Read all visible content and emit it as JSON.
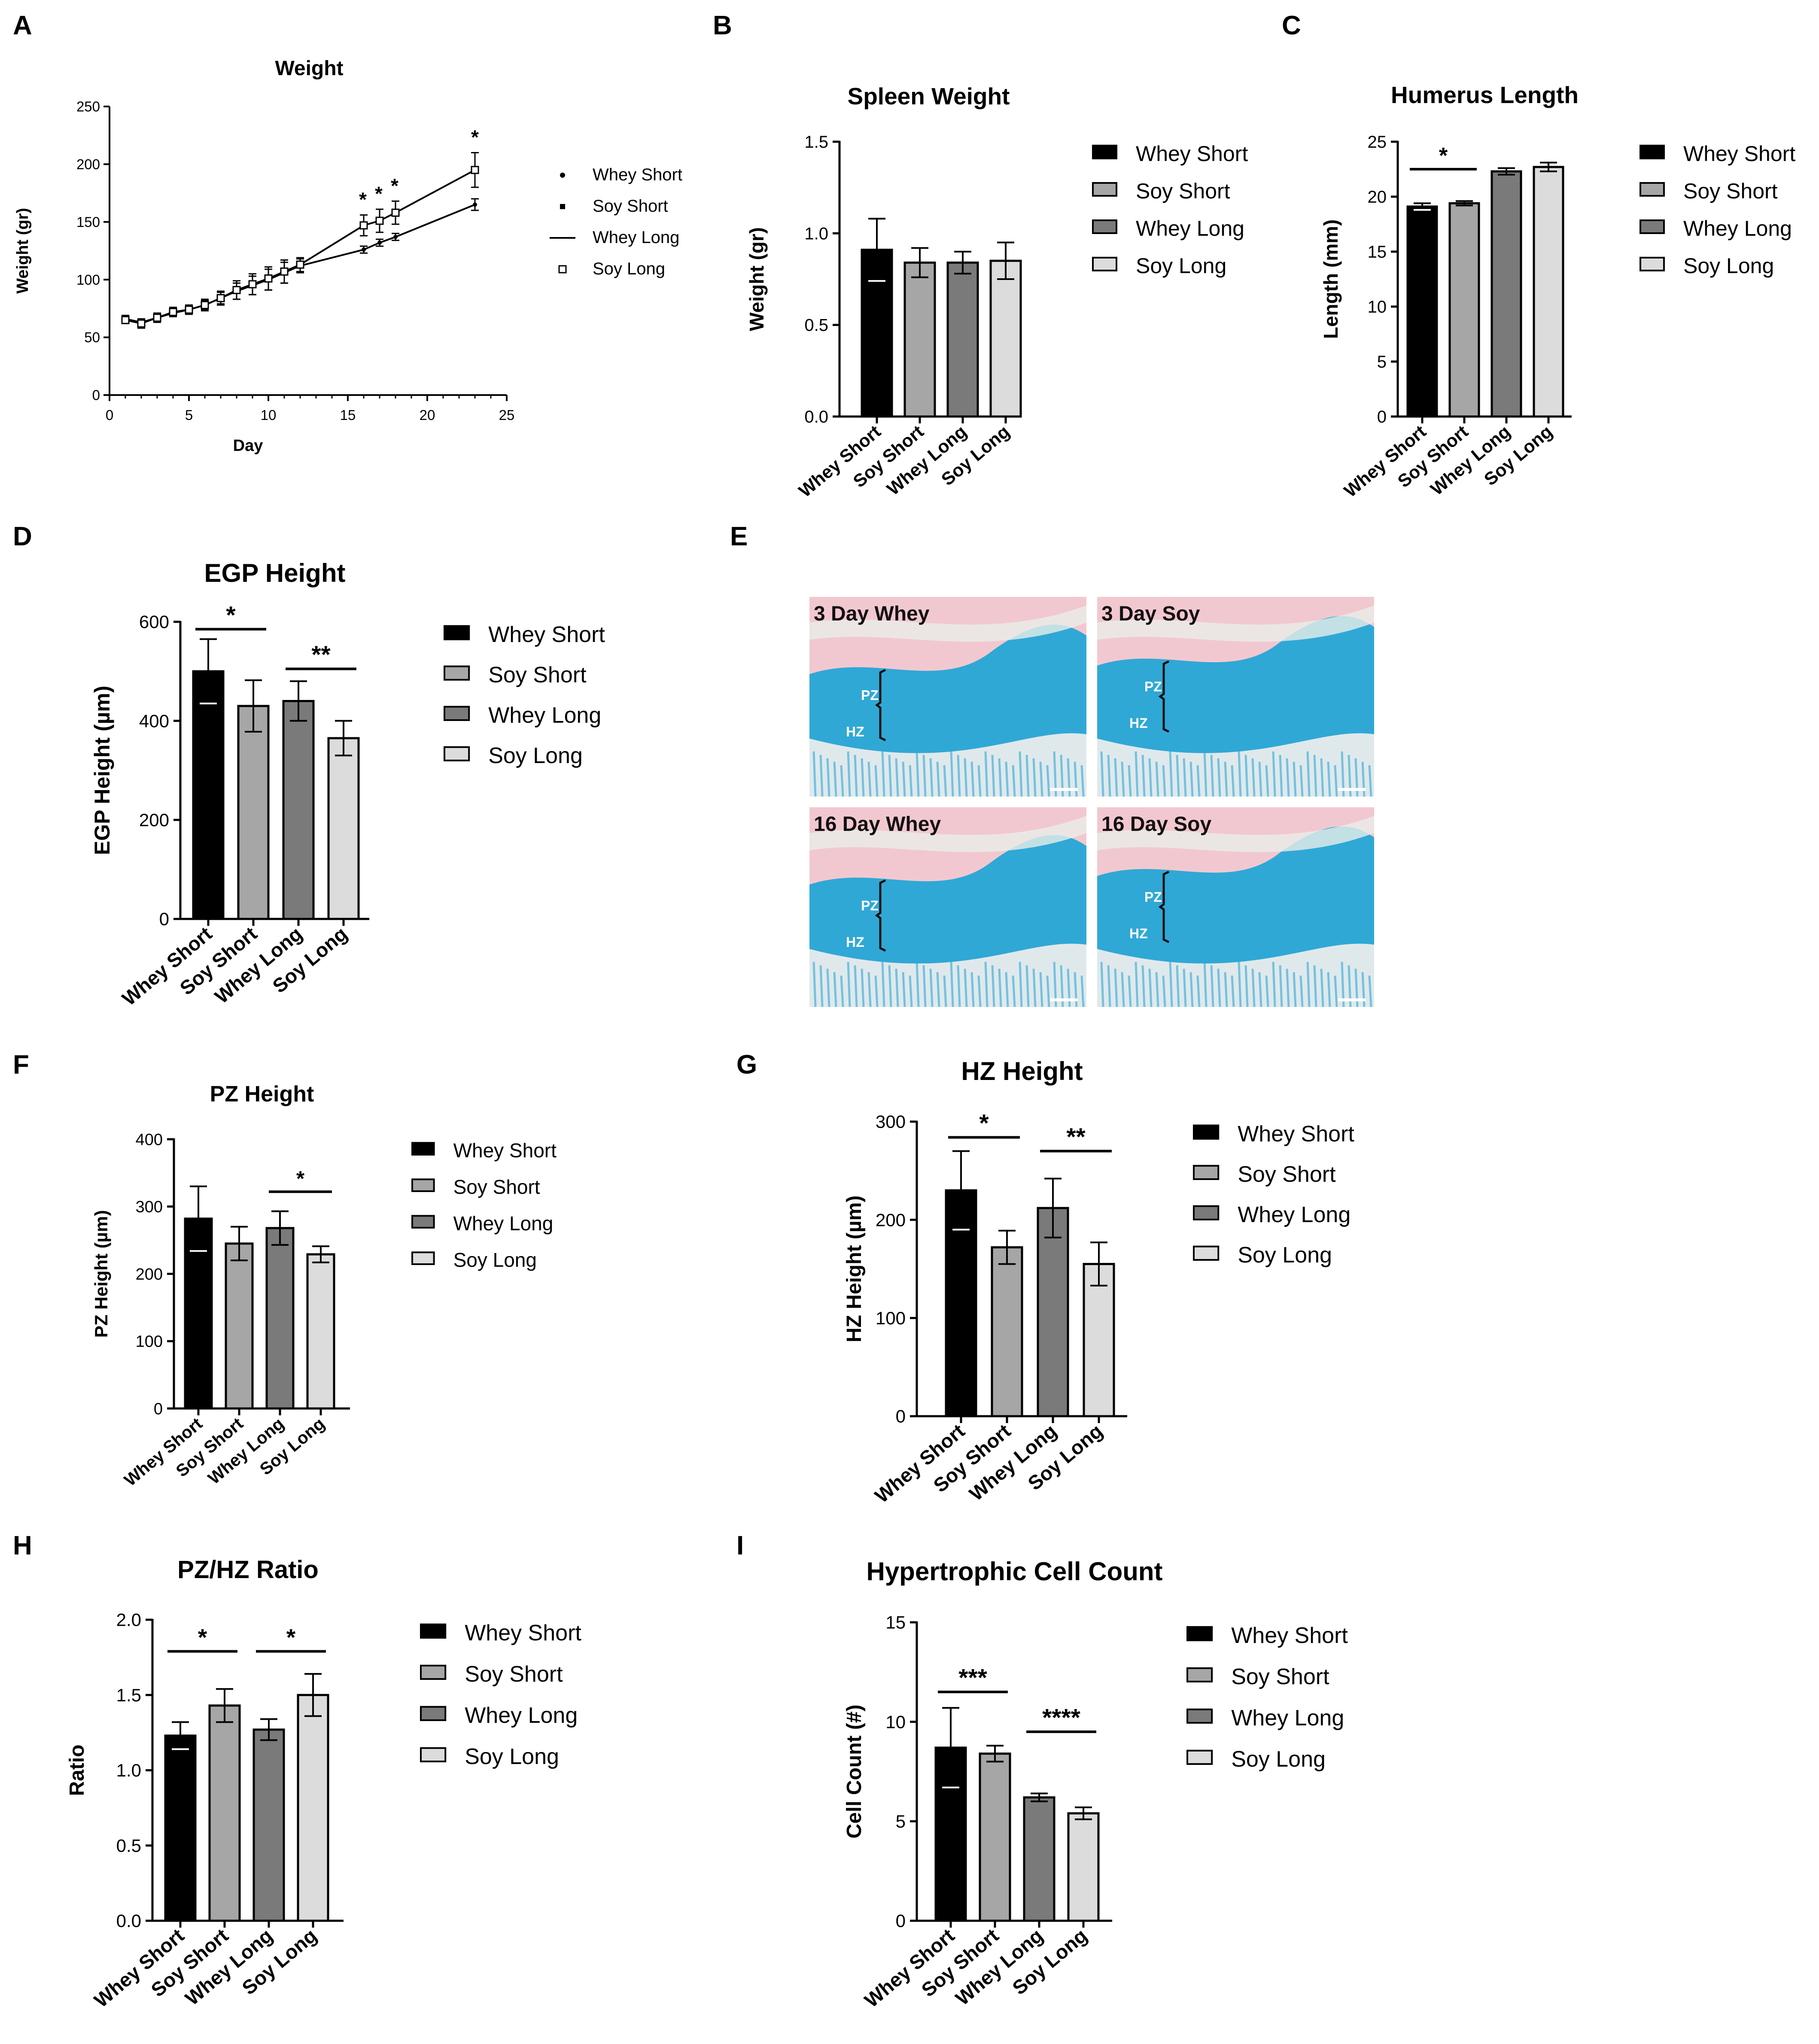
{
  "colors": {
    "whey_short": "#000000",
    "soy_short": "#a6a6a6",
    "whey_long": "#7a7a7a",
    "soy_long": "#dcdcdc",
    "axis": "#000000",
    "stain_pink": "#f2c8d0",
    "stain_blue": "#2fa8d6",
    "stain_light": "#dfe9ec"
  },
  "chart_data": [
    {
      "panel": "A",
      "type": "line",
      "title": "Weight",
      "xlabel": "Day",
      "ylabel": "Weight (gr)",
      "xlim": [
        0,
        25
      ],
      "ylim": [
        0,
        250
      ],
      "xticks": [
        "0",
        "5",
        "10",
        "15",
        "20",
        "25"
      ],
      "yticks": [
        "0",
        "50",
        "100",
        "150",
        "200",
        "250"
      ],
      "legend": [
        "Whey Short",
        "Soy Short",
        "Whey Long",
        "Soy Long"
      ],
      "series": [
        {
          "name": "Whey Long",
          "x": [
            1,
            2,
            3,
            4,
            5,
            6,
            7,
            8,
            9,
            10,
            11,
            12,
            16,
            17,
            18,
            23
          ],
          "y": [
            66,
            63,
            67,
            71,
            74,
            78,
            84,
            90,
            95,
            100,
            106,
            112,
            126,
            132,
            137,
            165
          ],
          "err": [
            3,
            3,
            3,
            3,
            3,
            4,
            5,
            7,
            8,
            9,
            9,
            6,
            3,
            3,
            3,
            5
          ]
        },
        {
          "name": "Soy Long",
          "x": [
            1,
            2,
            3,
            4,
            5,
            6,
            7,
            8,
            9,
            10,
            11,
            12,
            16,
            17,
            18,
            23
          ],
          "y": [
            65,
            62,
            67,
            72,
            74,
            78,
            84,
            91,
            96,
            101,
            107,
            113,
            147,
            151,
            158,
            195
          ],
          "err": [
            3,
            4,
            4,
            4,
            4,
            5,
            6,
            8,
            9,
            10,
            10,
            6,
            9,
            10,
            10,
            15
          ]
        }
      ],
      "significance": [
        {
          "x": 16,
          "label": "*"
        },
        {
          "x": 17,
          "label": "*"
        },
        {
          "x": 18,
          "label": "*"
        },
        {
          "x": 23,
          "label": "*"
        }
      ]
    },
    {
      "panel": "B",
      "type": "bar",
      "title": "Spleen Weight",
      "ylabel": "Weight (gr)",
      "categories": [
        "Whey Short",
        "Soy Short",
        "Whey Long",
        "Soy Long"
      ],
      "values": [
        0.91,
        0.84,
        0.84,
        0.85
      ],
      "errors": [
        0.17,
        0.08,
        0.06,
        0.1
      ],
      "ylim": [
        0,
        1.5
      ],
      "yticks": [
        "0.0",
        "0.5",
        "1.0",
        "1.5"
      ],
      "significance": []
    },
    {
      "panel": "C",
      "type": "bar",
      "title": "Humerus Length",
      "ylabel": "Length (mm)",
      "categories": [
        "Whey Short",
        "Soy Short",
        "Whey Long",
        "Soy Long"
      ],
      "values": [
        19.1,
        19.4,
        22.3,
        22.7
      ],
      "errors": [
        0.3,
        0.2,
        0.3,
        0.4
      ],
      "ylim": [
        0,
        25
      ],
      "yticks": [
        "0",
        "5",
        "10",
        "15",
        "20",
        "25"
      ],
      "significance": [
        {
          "from": 0,
          "to": 1,
          "level": 22.5,
          "label": "*"
        }
      ]
    },
    {
      "panel": "D",
      "type": "bar",
      "title": "EGP Height",
      "ylabel": "EGP Height (µm)",
      "categories": [
        "Whey Short",
        "Soy Short",
        "Whey Long",
        "Soy Long"
      ],
      "values": [
        500,
        430,
        440,
        365
      ],
      "errors": [
        65,
        52,
        40,
        35
      ],
      "ylim": [
        0,
        600
      ],
      "yticks": [
        "0",
        "200",
        "400",
        "600"
      ],
      "significance": [
        {
          "from": 0,
          "to": 1,
          "level": 585,
          "label": "*"
        },
        {
          "from": 2,
          "to": 3,
          "level": 505,
          "label": "**"
        }
      ]
    },
    {
      "panel": "F",
      "type": "bar",
      "title": "PZ Height",
      "ylabel": "PZ Height (µm)",
      "categories": [
        "Whey Short",
        "Soy Short",
        "Whey Long",
        "Soy Long"
      ],
      "values": [
        282,
        245,
        268,
        229
      ],
      "errors": [
        48,
        25,
        25,
        12
      ],
      "ylim": [
        0,
        400
      ],
      "yticks": [
        "0",
        "100",
        "200",
        "300",
        "400"
      ],
      "significance": [
        {
          "from": 2,
          "to": 3,
          "level": 322,
          "label": "*"
        }
      ]
    },
    {
      "panel": "G",
      "type": "bar",
      "title": "HZ Height",
      "ylabel": "HZ Height (µm)",
      "categories": [
        "Whey Short",
        "Soy Short",
        "Whey Long",
        "Soy Long"
      ],
      "values": [
        230,
        172,
        212,
        155
      ],
      "errors": [
        40,
        17,
        30,
        22
      ],
      "ylim": [
        0,
        300
      ],
      "yticks": [
        "0",
        "100",
        "200",
        "300"
      ],
      "significance": [
        {
          "from": 0,
          "to": 1,
          "level": 284,
          "label": "*"
        },
        {
          "from": 2,
          "to": 3,
          "level": 270,
          "label": "**"
        }
      ]
    },
    {
      "panel": "H",
      "type": "bar",
      "title": "PZ/HZ Ratio",
      "ylabel": "Ratio",
      "categories": [
        "Whey Short",
        "Soy Short",
        "Whey Long",
        "Soy Long"
      ],
      "values": [
        1.23,
        1.43,
        1.27,
        1.5
      ],
      "errors": [
        0.09,
        0.11,
        0.07,
        0.14
      ],
      "ylim": [
        0,
        2.0
      ],
      "yticks": [
        "0.0",
        "0.5",
        "1.0",
        "1.5",
        "2.0"
      ],
      "significance": [
        {
          "from": 0,
          "to": 1,
          "level": 1.79,
          "label": "*"
        },
        {
          "from": 2,
          "to": 3,
          "level": 1.79,
          "label": "*"
        }
      ]
    },
    {
      "panel": "I",
      "type": "bar",
      "title": "Hypertrophic Cell Count",
      "ylabel": "Cell Count (#)",
      "categories": [
        "Whey Short",
        "Soy Short",
        "Whey Long",
        "Soy Long"
      ],
      "values": [
        8.7,
        8.4,
        6.2,
        5.4
      ],
      "errors": [
        2.0,
        0.4,
        0.2,
        0.3
      ],
      "ylim": [
        0,
        15
      ],
      "yticks": [
        "0",
        "5",
        "10",
        "15"
      ],
      "significance": [
        {
          "from": 0,
          "to": 1,
          "level": 11.5,
          "label": "***"
        },
        {
          "from": 2,
          "to": 3,
          "level": 9.5,
          "label": "****"
        }
      ]
    }
  ],
  "histology": {
    "panel": "E",
    "images": [
      {
        "label": "3 Day Whey",
        "zones": [
          "PZ",
          "HZ"
        ]
      },
      {
        "label": "3 Day Soy",
        "zones": [
          "PZ",
          "HZ"
        ]
      },
      {
        "label": "16 Day Whey",
        "zones": [
          "PZ",
          "HZ"
        ]
      },
      {
        "label": "16 Day Soy",
        "zones": [
          "PZ",
          "HZ"
        ]
      }
    ]
  }
}
